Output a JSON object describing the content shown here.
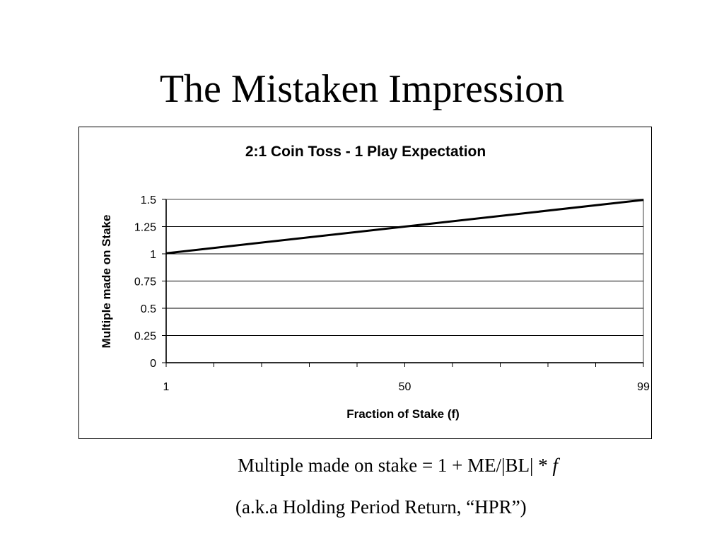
{
  "slide": {
    "title": "The Mistaken Impression",
    "formula_prefix": "Multiple made on stake = 1 + ME/|BL| * ",
    "formula_var": "f",
    "note": "(a.k.a Holding Period Return, “HPR”)"
  },
  "chart_data": {
    "type": "line",
    "title": "2:1 Coin Toss - 1 Play Expectation",
    "xlabel": "Fraction of Stake (f)",
    "ylabel": "Multiple made on Stake",
    "xlim": [
      1,
      99
    ],
    "ylim": [
      0,
      1.5
    ],
    "x_tick_labels": [
      "1",
      "50",
      "99"
    ],
    "y_ticks": [
      0,
      0.25,
      0.5,
      0.75,
      1,
      1.25,
      1.5
    ],
    "y_tick_labels": [
      "0",
      "0.25",
      "0.5",
      "0.75",
      "1",
      "1.25",
      "1.5"
    ],
    "grid": "horizontal",
    "legend": "none",
    "series": [
      {
        "x": [
          1,
          50,
          99
        ],
        "y": [
          1.005,
          1.25,
          1.495
        ]
      }
    ],
    "line_color": "#000000",
    "frame_color": "#000000"
  }
}
